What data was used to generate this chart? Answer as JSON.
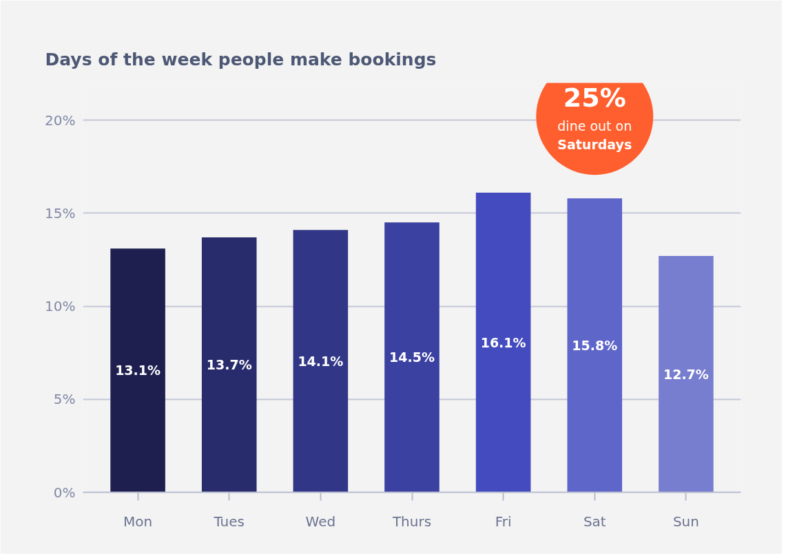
{
  "chart_data": {
    "type": "bar",
    "title": "Days of the week people make bookings",
    "categories": [
      "Mon",
      "Tues",
      "Wed",
      "Thurs",
      "Fri",
      "Sat",
      "Sun"
    ],
    "values": [
      13.1,
      13.7,
      14.1,
      14.5,
      16.1,
      15.8,
      12.7
    ],
    "colors": [
      "#1e1f4f",
      "#292c6c",
      "#313786",
      "#3a41a0",
      "#434bbf",
      "#5e66c9",
      "#777dcf"
    ],
    "ylim": [
      0,
      22
    ],
    "yticks": [
      {
        "value": 0,
        "label": "0%"
      },
      {
        "value": 5,
        "label": "5%"
      },
      {
        "value": 10,
        "label": "10%"
      },
      {
        "value": 15,
        "label": "15%"
      },
      {
        "value": 20,
        "label": "20%"
      }
    ],
    "grid": "y",
    "value_labels": [
      "13.1%",
      "13.7%",
      "14.1%",
      "14.5%",
      "16.1%",
      "15.8%",
      "12.7%"
    ],
    "annotations": [
      "25%\ndine out on\nSaturdays"
    ]
  }
}
